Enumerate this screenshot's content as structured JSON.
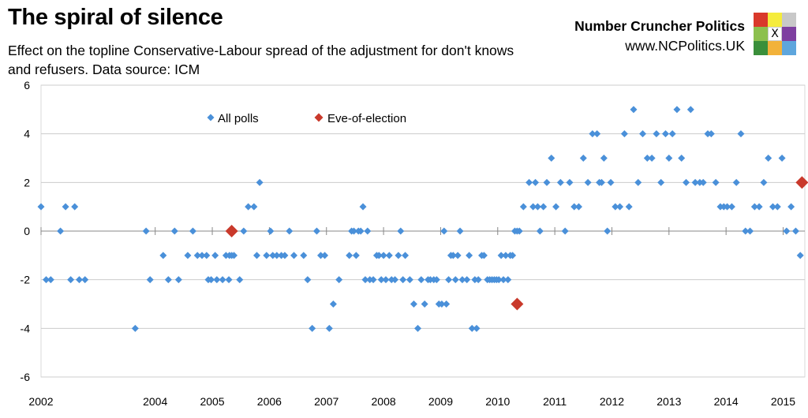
{
  "header": {
    "title": "The spiral of silence",
    "subtitle": "Effect on the topline Conservative-Labour spread of the adjustment for don't knows and refusers. Data source: ICM"
  },
  "brand": {
    "name": "Number Cruncher Politics",
    "url": "www.NCPolitics.UK",
    "logo_cells": [
      "#d9392b",
      "#f5ec3c",
      "#c8c8c8",
      "#8dc04e",
      "x",
      "#7e3fa0",
      "#3a8f3a",
      "#f2b23a",
      "#5ea6dd"
    ],
    "logo_mark": "X"
  },
  "colors": {
    "all_polls": "#4a90d9",
    "eve_of_election": "#c9392b",
    "axis": "#888888",
    "grid": "#cccccc",
    "border": "#d9d9d9"
  },
  "chart_data": {
    "type": "scatter",
    "title": "The spiral of silence",
    "xlabel": "",
    "ylabel": "",
    "xlim": [
      2002,
      2015.38
    ],
    "ylim": [
      -6,
      6
    ],
    "x_ticks": [
      "2002",
      "2004",
      "2005",
      "2006",
      "2007",
      "2008",
      "2009",
      "2010",
      "2011",
      "2012",
      "2013",
      "2014",
      "2015"
    ],
    "x_tick_values": [
      2002,
      2004,
      2005,
      2006,
      2007,
      2008,
      2009,
      2010,
      2011,
      2012,
      2013,
      2014,
      2015
    ],
    "y_ticks": [
      -6,
      -4,
      -2,
      0,
      2,
      4,
      6
    ],
    "gridlines": "horizontal",
    "legend": [
      {
        "name": "All polls",
        "marker": "diamond-small"
      },
      {
        "name": "Eve-of-election",
        "marker": "diamond-large"
      }
    ],
    "legend_position": "top-center",
    "series": [
      {
        "name": "All polls",
        "points": [
          [
            2002.0,
            1
          ],
          [
            2002.09,
            -2
          ],
          [
            2002.17,
            -2
          ],
          [
            2002.34,
            0
          ],
          [
            2002.43,
            1
          ],
          [
            2002.52,
            -2
          ],
          [
            2002.59,
            1
          ],
          [
            2002.67,
            -2
          ],
          [
            2002.77,
            -2
          ],
          [
            2003.65,
            -4
          ],
          [
            2003.84,
            0
          ],
          [
            2003.91,
            -2
          ],
          [
            2004.14,
            -1
          ],
          [
            2004.23,
            -2
          ],
          [
            2004.34,
            0
          ],
          [
            2004.41,
            -2
          ],
          [
            2004.57,
            -1
          ],
          [
            2004.66,
            0
          ],
          [
            2004.74,
            -1
          ],
          [
            2004.82,
            -1
          ],
          [
            2004.9,
            -1
          ],
          [
            2004.93,
            -2
          ],
          [
            2004.98,
            -2
          ],
          [
            2005.05,
            -1
          ],
          [
            2005.08,
            -2
          ],
          [
            2005.18,
            -2
          ],
          [
            2005.24,
            -1
          ],
          [
            2005.3,
            -1
          ],
          [
            2005.34,
            -1
          ],
          [
            2005.38,
            -1
          ],
          [
            2005.29,
            -2
          ],
          [
            2005.48,
            -2
          ],
          [
            2005.55,
            0
          ],
          [
            2005.63,
            1
          ],
          [
            2005.73,
            1
          ],
          [
            2005.78,
            -1
          ],
          [
            2005.83,
            2
          ],
          [
            2005.95,
            -1
          ],
          [
            2006.02,
            0
          ],
          [
            2006.06,
            -1
          ],
          [
            2006.13,
            -1
          ],
          [
            2006.21,
            -1
          ],
          [
            2006.27,
            -1
          ],
          [
            2006.35,
            0
          ],
          [
            2006.43,
            -1
          ],
          [
            2006.6,
            -1
          ],
          [
            2006.67,
            -2
          ],
          [
            2006.75,
            -4
          ],
          [
            2006.83,
            0
          ],
          [
            2006.9,
            -1
          ],
          [
            2006.97,
            -1
          ],
          [
            2007.05,
            -4
          ],
          [
            2007.12,
            -3
          ],
          [
            2007.22,
            -2
          ],
          [
            2007.4,
            -1
          ],
          [
            2007.44,
            0
          ],
          [
            2007.48,
            0
          ],
          [
            2007.52,
            -1
          ],
          [
            2007.56,
            0
          ],
          [
            2007.6,
            0
          ],
          [
            2007.64,
            1
          ],
          [
            2007.68,
            -2
          ],
          [
            2007.72,
            0
          ],
          [
            2007.76,
            -2
          ],
          [
            2007.82,
            -2
          ],
          [
            2007.88,
            -1
          ],
          [
            2007.92,
            -1
          ],
          [
            2007.96,
            -2
          ],
          [
            2008.0,
            -1
          ],
          [
            2008.04,
            -2
          ],
          [
            2008.1,
            -1
          ],
          [
            2008.14,
            -2
          ],
          [
            2008.2,
            -2
          ],
          [
            2008.26,
            -1
          ],
          [
            2008.3,
            0
          ],
          [
            2008.34,
            -2
          ],
          [
            2008.38,
            -1
          ],
          [
            2008.46,
            -2
          ],
          [
            2008.53,
            -3
          ],
          [
            2008.6,
            -4
          ],
          [
            2008.66,
            -2
          ],
          [
            2008.72,
            -3
          ],
          [
            2008.78,
            -2
          ],
          [
            2008.82,
            -2
          ],
          [
            2008.88,
            -2
          ],
          [
            2008.93,
            -2
          ],
          [
            2008.97,
            -3
          ],
          [
            2009.02,
            -3
          ],
          [
            2009.06,
            0
          ],
          [
            2009.1,
            -3
          ],
          [
            2009.14,
            -2
          ],
          [
            2009.18,
            -1
          ],
          [
            2009.22,
            -1
          ],
          [
            2009.26,
            -2
          ],
          [
            2009.3,
            -1
          ],
          [
            2009.34,
            0
          ],
          [
            2009.38,
            -2
          ],
          [
            2009.46,
            -2
          ],
          [
            2009.5,
            -1
          ],
          [
            2009.55,
            -4
          ],
          [
            2009.6,
            -2
          ],
          [
            2009.63,
            -4
          ],
          [
            2009.66,
            -2
          ],
          [
            2009.72,
            -1
          ],
          [
            2009.76,
            -1
          ],
          [
            2009.82,
            -2
          ],
          [
            2009.86,
            -2
          ],
          [
            2009.9,
            -2
          ],
          [
            2009.94,
            -2
          ],
          [
            2009.98,
            -2
          ],
          [
            2010.02,
            -2
          ],
          [
            2010.06,
            -1
          ],
          [
            2010.1,
            -2
          ],
          [
            2010.14,
            -1
          ],
          [
            2010.18,
            -2
          ],
          [
            2010.22,
            -1
          ],
          [
            2010.26,
            -1
          ],
          [
            2010.3,
            0
          ],
          [
            2010.34,
            0
          ],
          [
            2010.38,
            0
          ],
          [
            2010.45,
            1
          ],
          [
            2010.55,
            2
          ],
          [
            2010.62,
            1
          ],
          [
            2010.66,
            2
          ],
          [
            2010.7,
            1
          ],
          [
            2010.74,
            0
          ],
          [
            2010.8,
            1
          ],
          [
            2010.86,
            2
          ],
          [
            2010.94,
            3
          ],
          [
            2011.02,
            1
          ],
          [
            2011.1,
            2
          ],
          [
            2011.18,
            0
          ],
          [
            2011.26,
            2
          ],
          [
            2011.34,
            1
          ],
          [
            2011.42,
            1
          ],
          [
            2011.5,
            3
          ],
          [
            2011.58,
            2
          ],
          [
            2011.66,
            4
          ],
          [
            2011.74,
            4
          ],
          [
            2011.78,
            2
          ],
          [
            2011.82,
            2
          ],
          [
            2011.86,
            3
          ],
          [
            2011.92,
            0
          ],
          [
            2011.98,
            2
          ],
          [
            2012.06,
            1
          ],
          [
            2012.14,
            1
          ],
          [
            2012.22,
            4
          ],
          [
            2012.3,
            1
          ],
          [
            2012.38,
            5
          ],
          [
            2012.46,
            2
          ],
          [
            2012.54,
            4
          ],
          [
            2012.62,
            3
          ],
          [
            2012.7,
            3
          ],
          [
            2012.78,
            4
          ],
          [
            2012.86,
            2
          ],
          [
            2012.94,
            4
          ],
          [
            2013.0,
            3
          ],
          [
            2013.06,
            4
          ],
          [
            2013.14,
            5
          ],
          [
            2013.22,
            3
          ],
          [
            2013.3,
            2
          ],
          [
            2013.38,
            5
          ],
          [
            2013.46,
            2
          ],
          [
            2013.54,
            2
          ],
          [
            2013.6,
            2
          ],
          [
            2013.68,
            4
          ],
          [
            2013.74,
            4
          ],
          [
            2013.82,
            2
          ],
          [
            2013.9,
            1
          ],
          [
            2013.96,
            1
          ],
          [
            2014.02,
            1
          ],
          [
            2014.1,
            1
          ],
          [
            2014.18,
            2
          ],
          [
            2014.26,
            4
          ],
          [
            2014.34,
            0
          ],
          [
            2014.42,
            0
          ],
          [
            2014.5,
            1
          ],
          [
            2014.58,
            1
          ],
          [
            2014.66,
            2
          ],
          [
            2014.74,
            3
          ],
          [
            2014.82,
            1
          ],
          [
            2014.9,
            1
          ],
          [
            2014.98,
            3
          ],
          [
            2015.06,
            0
          ],
          [
            2015.14,
            1
          ],
          [
            2015.22,
            0
          ],
          [
            2015.3,
            -1
          ]
        ]
      },
      {
        "name": "Eve-of-election",
        "points": [
          [
            2005.34,
            0
          ],
          [
            2010.34,
            -3
          ],
          [
            2015.33,
            2
          ]
        ]
      }
    ]
  }
}
